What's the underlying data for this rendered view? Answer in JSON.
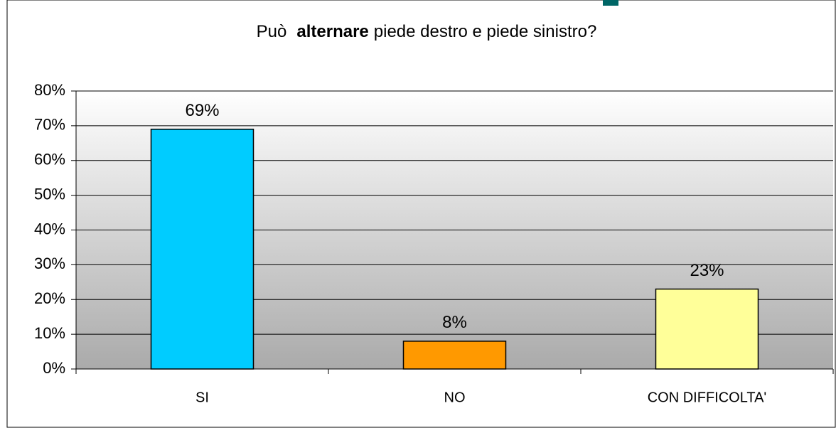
{
  "chart_data": {
    "type": "bar",
    "title": [
      "Può",
      "alternare",
      "piede destro e piede sinistro?"
    ],
    "categories": [
      "SI",
      "NO",
      "CON DIFFICOLTA'"
    ],
    "values": [
      69,
      8,
      23
    ],
    "value_labels": [
      "69%",
      "8%",
      "23%"
    ],
    "colors": [
      "#00ccff",
      "#ff9900",
      "#ffff99"
    ],
    "ylim": [
      0,
      80
    ],
    "yticks": [
      {
        "value": 0,
        "label": "0%"
      },
      {
        "value": 10,
        "label": "10%"
      },
      {
        "value": 20,
        "label": "20%"
      },
      {
        "value": 30,
        "label": "30%"
      },
      {
        "value": 40,
        "label": "40%"
      },
      {
        "value": 50,
        "label": "50%"
      },
      {
        "value": 60,
        "label": "60%"
      },
      {
        "value": 70,
        "label": "70%"
      },
      {
        "value": 80,
        "label": "80%"
      }
    ],
    "grid": true
  }
}
